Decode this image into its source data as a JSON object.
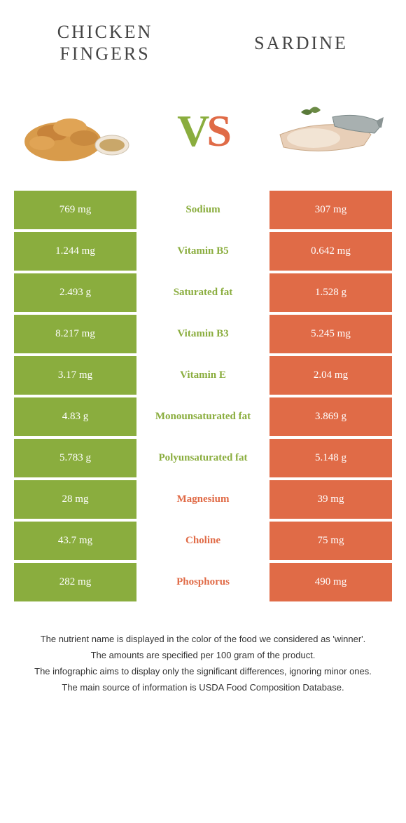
{
  "colors": {
    "green": "#8aad3e",
    "orange": "#e06b47",
    "background": "#ffffff",
    "text": "#333333"
  },
  "header": {
    "left_title": "CHICKEN\nFINGERS",
    "right_title": "SARDINE",
    "vs_v": "V",
    "vs_s": "S"
  },
  "nutrients": [
    {
      "name": "Sodium",
      "left": "769 mg",
      "right": "307 mg",
      "winner": "left"
    },
    {
      "name": "Vitamin B5",
      "left": "1.244 mg",
      "right": "0.642 mg",
      "winner": "left"
    },
    {
      "name": "Saturated fat",
      "left": "2.493 g",
      "right": "1.528 g",
      "winner": "left"
    },
    {
      "name": "Vitamin B3",
      "left": "8.217 mg",
      "right": "5.245 mg",
      "winner": "left"
    },
    {
      "name": "Vitamin E",
      "left": "3.17 mg",
      "right": "2.04 mg",
      "winner": "left"
    },
    {
      "name": "Monounsaturated fat",
      "left": "4.83 g",
      "right": "3.869 g",
      "winner": "left"
    },
    {
      "name": "Polyunsaturated fat",
      "left": "5.783 g",
      "right": "5.148 g",
      "winner": "left"
    },
    {
      "name": "Magnesium",
      "left": "28 mg",
      "right": "39 mg",
      "winner": "right"
    },
    {
      "name": "Choline",
      "left": "43.7 mg",
      "right": "75 mg",
      "winner": "right"
    },
    {
      "name": "Phosphorus",
      "left": "282 mg",
      "right": "490 mg",
      "winner": "right"
    }
  ],
  "footer": {
    "line1": "The nutrient name is displayed in the color of the food we considered as 'winner'.",
    "line2": "The amounts are specified per 100 gram of the product.",
    "line3": "The infographic aims to display only the significant differences, ignoring minor ones.",
    "line4": "The main source of information is USDA Food Composition Database."
  }
}
